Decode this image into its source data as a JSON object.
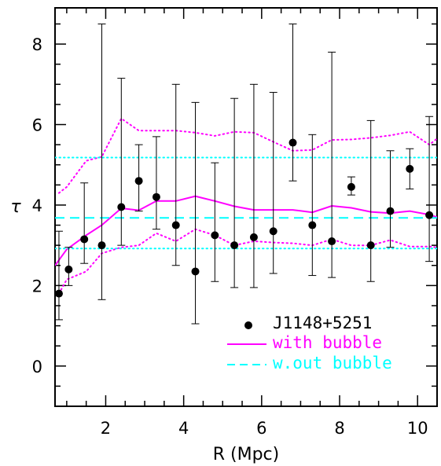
{
  "chart_data": {
    "type": "scatter",
    "xlabel": "R (Mpc)",
    "ylabel": "τ",
    "xlim": [
      0.7,
      10.5
    ],
    "ylim": [
      -1,
      8.9
    ],
    "x_ticks": [
      2,
      4,
      6,
      8,
      10
    ],
    "y_ticks": [
      0,
      2,
      4,
      6,
      8
    ],
    "grid": false,
    "legend_position": "bottom-right",
    "points": {
      "name": "J1148+5251",
      "color": "#000000",
      "x": [
        0.8,
        1.05,
        1.45,
        1.9,
        2.4,
        2.85,
        3.3,
        3.8,
        4.3,
        4.8,
        5.3,
        5.8,
        6.3,
        6.8,
        7.3,
        7.8,
        8.3,
        8.8,
        9.3,
        9.8,
        10.3
      ],
      "y": [
        1.8,
        2.4,
        3.15,
        3.0,
        3.95,
        4.6,
        4.2,
        3.5,
        2.35,
        3.25,
        3.0,
        3.2,
        3.35,
        5.55,
        3.5,
        3.1,
        4.45,
        3.0,
        3.85,
        4.9,
        3.75
      ],
      "y_low": [
        1.15,
        2.0,
        2.55,
        1.65,
        3.0,
        3.85,
        3.4,
        2.5,
        1.05,
        2.1,
        1.95,
        1.95,
        2.3,
        4.6,
        2.25,
        2.2,
        4.25,
        2.1,
        2.95,
        4.4,
        2.6
      ],
      "y_high": [
        3.35,
        2.95,
        4.55,
        8.5,
        7.15,
        5.5,
        5.7,
        7.0,
        6.55,
        5.05,
        6.65,
        7.0,
        6.8,
        8.5,
        5.75,
        7.8,
        4.7,
        6.1,
        5.35,
        5.4,
        6.2
      ]
    },
    "series": [
      {
        "name": "with bubble",
        "color": "#ff00ff",
        "style": "solid",
        "x": [
          0.7,
          1.0,
          1.5,
          1.9,
          2.4,
          2.85,
          3.3,
          3.8,
          4.3,
          4.8,
          5.3,
          5.8,
          6.3,
          6.8,
          7.3,
          7.8,
          8.3,
          8.8,
          9.3,
          9.8,
          10.3,
          10.5
        ],
        "y": [
          2.5,
          2.9,
          3.25,
          3.5,
          3.92,
          3.87,
          4.1,
          4.1,
          4.22,
          4.1,
          3.97,
          3.88,
          3.88,
          3.88,
          3.82,
          3.98,
          3.93,
          3.83,
          3.8,
          3.85,
          3.76,
          3.7
        ]
      },
      {
        "name": "with bubble upper",
        "color": "#ff00ff",
        "style": "dotted",
        "x": [
          0.8,
          1.0,
          1.5,
          1.9,
          2.4,
          2.85,
          3.3,
          3.8,
          4.3,
          4.8,
          5.3,
          5.8,
          6.3,
          6.8,
          7.3,
          7.8,
          8.3,
          8.8,
          9.3,
          9.8,
          10.3,
          10.5
        ],
        "y": [
          4.3,
          4.45,
          5.1,
          5.2,
          6.15,
          5.85,
          5.85,
          5.85,
          5.8,
          5.72,
          5.82,
          5.8,
          5.57,
          5.35,
          5.37,
          5.62,
          5.63,
          5.67,
          5.73,
          5.82,
          5.5,
          5.65
        ]
      },
      {
        "name": "with bubble lower",
        "color": "#ff00ff",
        "style": "dotted",
        "x": [
          0.8,
          1.0,
          1.5,
          1.9,
          2.4,
          2.85,
          3.3,
          3.8,
          4.3,
          4.8,
          5.3,
          5.8,
          6.3,
          6.8,
          7.3,
          7.8,
          8.3,
          8.8,
          9.3,
          9.8,
          10.3,
          10.5
        ],
        "y": [
          1.8,
          2.15,
          2.35,
          2.8,
          2.95,
          3.0,
          3.3,
          3.1,
          3.4,
          3.25,
          3.0,
          3.1,
          3.07,
          3.05,
          3.0,
          3.15,
          3.0,
          3.0,
          3.13,
          2.97,
          2.97,
          2.95
        ]
      },
      {
        "name": "w.out bubble",
        "color": "#00ffff",
        "style": "dashed",
        "x": [
          0.7,
          10.5
        ],
        "y": [
          3.68,
          3.68
        ]
      },
      {
        "name": "w.out bubble upper",
        "color": "#00ffff",
        "style": "dotted",
        "x": [
          0.7,
          10.5
        ],
        "y": [
          5.18,
          5.18
        ]
      },
      {
        "name": "w.out bubble lower",
        "color": "#00ffff",
        "style": "dotted",
        "x": [
          0.7,
          10.5
        ],
        "y": [
          2.92,
          2.92
        ]
      }
    ],
    "legend": [
      {
        "label": "J1148+5251",
        "color": "#000000",
        "marker": "point"
      },
      {
        "label": "with bubble",
        "color": "#ff00ff",
        "marker": "solid"
      },
      {
        "label": "w.out bubble",
        "color": "#00ffff",
        "marker": "dashed"
      }
    ]
  }
}
